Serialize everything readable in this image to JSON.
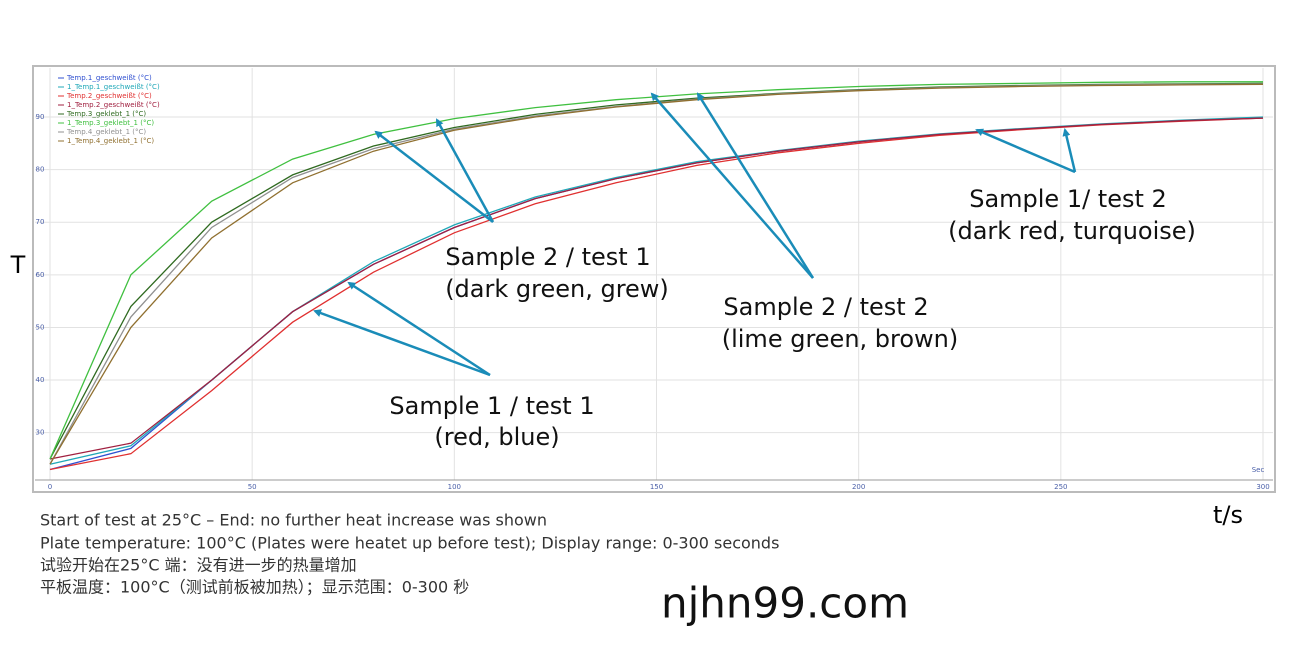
{
  "chart_data": {
    "type": "line",
    "x_label": "Sec",
    "y_title": "T",
    "x_title": "t/s",
    "x": [
      0,
      20,
      40,
      60,
      80,
      100,
      120,
      140,
      160,
      180,
      200,
      220,
      240,
      260,
      280,
      300
    ],
    "xlim": [
      0,
      300
    ],
    "xticks": [
      0,
      50,
      100,
      150,
      200,
      250,
      300
    ],
    "ylim": [
      21,
      99.7
    ],
    "yticks": [
      30,
      40,
      50,
      60,
      70,
      80,
      90
    ],
    "grid": true,
    "legend": "top-left",
    "series": [
      {
        "name": "Temp.1_geschweißt (°C)",
        "color": "#3050d0",
        "values": [
          23,
          27,
          40,
          53,
          62,
          69,
          74.5,
          78.3,
          81.3,
          83.5,
          85.3,
          86.7,
          87.7,
          88.6,
          89.3,
          89.9
        ]
      },
      {
        "name": "1_Temp.1_geschweißt (°C)",
        "color": "#20a8b8",
        "values": [
          24,
          27.5,
          40,
          53,
          62.5,
          69.5,
          74.8,
          78.5,
          81.5,
          83.6,
          85.4,
          86.8,
          87.8,
          88.7,
          89.4,
          90
        ]
      },
      {
        "name": "Temp.2_geschweißt (°C)",
        "color": "#e03030",
        "values": [
          23,
          26,
          38,
          51,
          60.5,
          68,
          73.5,
          77.5,
          80.8,
          83.2,
          85,
          86.5,
          87.6,
          88.5,
          89.2,
          89.8
        ]
      },
      {
        "name": "1_Temp.2_geschweißt (°C)",
        "color": "#a02040",
        "values": [
          25,
          28,
          40,
          53,
          62,
          69,
          74.5,
          78.3,
          81.3,
          83.5,
          85.3,
          86.7,
          87.7,
          88.6,
          89.3,
          89.8
        ]
      },
      {
        "name": "Temp.3_geklebt_1 (°C)",
        "color": "#2f6a20",
        "values": [
          25,
          54,
          70,
          79,
          84.5,
          88,
          90.5,
          92.3,
          93.6,
          94.5,
          95.2,
          95.7,
          96,
          96.2,
          96.3,
          96.4
        ]
      },
      {
        "name": "1_Temp.3_geklebt_1 (°C)",
        "color": "#40c040",
        "values": [
          25,
          60,
          74,
          82,
          86.7,
          89.7,
          91.8,
          93.3,
          94.4,
          95.2,
          95.8,
          96.2,
          96.4,
          96.6,
          96.7,
          96.7
        ]
      },
      {
        "name": "Temp.4_geklebt_1 (°C)",
        "color": "#909090",
        "values": [
          24,
          52,
          69,
          78.5,
          84,
          87.7,
          90.2,
          92,
          93.4,
          94.4,
          95.1,
          95.6,
          95.9,
          96.1,
          96.2,
          96.3
        ]
      },
      {
        "name": "1_Temp.4_geklebt_1 (°C)",
        "color": "#907030",
        "values": [
          24,
          50,
          67,
          77.5,
          83.5,
          87.5,
          90,
          91.9,
          93.3,
          94.3,
          95,
          95.5,
          95.8,
          96,
          96.1,
          96.2
        ]
      }
    ],
    "annotations": [
      "Sample 2 / test 1",
      "(dark green, grew)",
      "Sample 2 / test 2",
      "(lime green, brown)",
      "Sample 1/ test 2",
      "(dark red, turquoise)",
      "Sample 1 / test 1",
      "(red, blue)"
    ]
  },
  "notes": [
    "Start of test at 25°C – End: no further heat increase was shown",
    "Plate temperature: 100°C (Plates were heatet up before test); Display range: 0-300 seconds",
    "试验开始在25°C 端：没有进一步的热量增加",
    "平板温度：100°C（测试前板被加热）；显示范围：0-300 秒"
  ],
  "watermark": "njhn99.com"
}
